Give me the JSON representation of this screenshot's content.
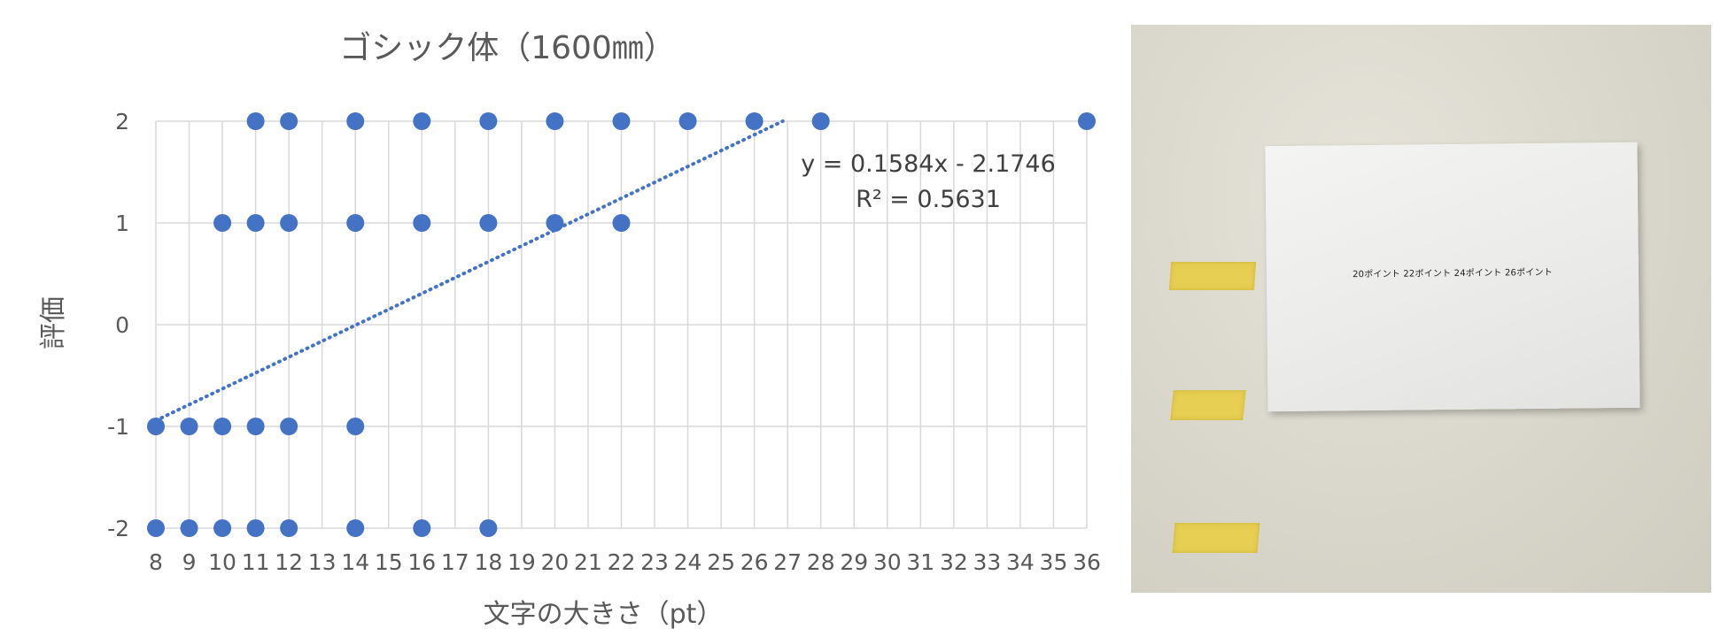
{
  "chart_data": {
    "type": "scatter",
    "title": "ゴシック体（1600㎜）",
    "xlabel": "文字の大きさ（pt）",
    "ylabel": "評価",
    "x_ticks": [
      8,
      9,
      10,
      11,
      12,
      13,
      14,
      15,
      16,
      17,
      18,
      19,
      20,
      21,
      22,
      23,
      24,
      25,
      26,
      27,
      28,
      29,
      30,
      31,
      32,
      33,
      34,
      35,
      36
    ],
    "y_ticks": [
      2,
      1,
      0,
      -1,
      -2
    ],
    "ylim": [
      -2,
      2
    ],
    "grid": true,
    "series": [
      {
        "color": "#4472C4",
        "points": [
          [
            11,
            2
          ],
          [
            12,
            2
          ],
          [
            14,
            2
          ],
          [
            16,
            2
          ],
          [
            18,
            2
          ],
          [
            20,
            2
          ],
          [
            22,
            2
          ],
          [
            24,
            2
          ],
          [
            26,
            2
          ],
          [
            28,
            2
          ],
          [
            36,
            2
          ],
          [
            10,
            1
          ],
          [
            11,
            1
          ],
          [
            12,
            1
          ],
          [
            14,
            1
          ],
          [
            16,
            1
          ],
          [
            18,
            1
          ],
          [
            20,
            1
          ],
          [
            22,
            1
          ],
          [
            8,
            -1
          ],
          [
            9,
            -1
          ],
          [
            10,
            -1
          ],
          [
            11,
            -1
          ],
          [
            12,
            -1
          ],
          [
            14,
            -1
          ],
          [
            8,
            -2
          ],
          [
            9,
            -2
          ],
          [
            10,
            -2
          ],
          [
            11,
            -2
          ],
          [
            12,
            -2
          ],
          [
            14,
            -2
          ],
          [
            16,
            -2
          ],
          [
            18,
            -2
          ]
        ]
      }
    ],
    "trendline": {
      "type": "linear",
      "slope": 0.1584,
      "intercept": -2.1746,
      "x_range": [
        8,
        26
      ],
      "style": "dotted",
      "color": "#4472C4",
      "equation_label": "y = 0.1584x - 2.1746",
      "r2_label": "R² = 0.5631"
    }
  },
  "photo": {
    "paper_text": "20ポイント 22ポイント 24ポイント 26ポイント",
    "wall_color": "#d9d7cb",
    "tape_color": "#e6cf52"
  }
}
